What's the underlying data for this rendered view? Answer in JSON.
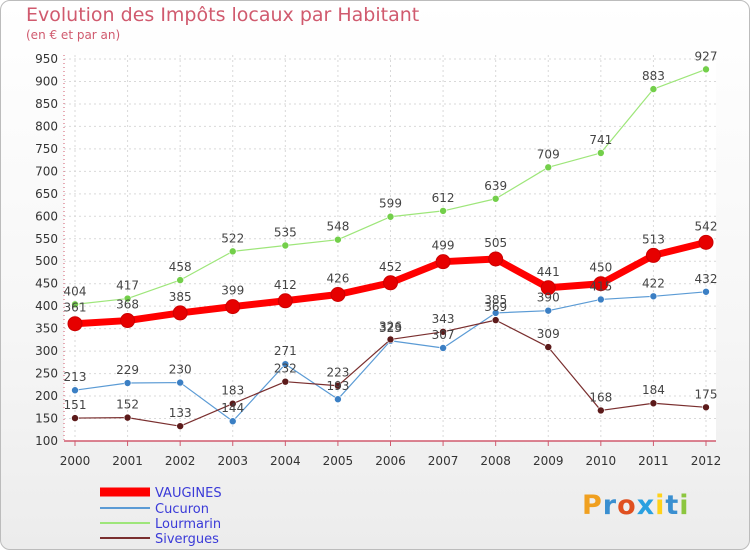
{
  "title": "Evolution des Impôts locaux par Habitant",
  "subtitle": "(en € et par an)",
  "brand": "Proxiti",
  "colors": {
    "title": "#d05a6e",
    "axis": "#d05a6e",
    "grid": "#d9d9d9"
  },
  "chart_data": {
    "type": "line",
    "x": [
      "2000",
      "2001",
      "2002",
      "2003",
      "2004",
      "2005",
      "2006",
      "2007",
      "2008",
      "2009",
      "2010",
      "2011",
      "2012"
    ],
    "ylim": [
      100,
      950
    ],
    "yticks": [
      100,
      150,
      200,
      250,
      300,
      350,
      400,
      450,
      500,
      550,
      600,
      650,
      700,
      750,
      800,
      850,
      900,
      950
    ],
    "grid": true,
    "legend_position": "bottom-left",
    "series": [
      {
        "name": "VAUGINES",
        "color": "#ff0000",
        "marker": "#e60000",
        "width": 7,
        "radius": 7,
        "values": [
          361,
          368,
          385,
          399,
          412,
          426,
          452,
          499,
          505,
          441,
          450,
          513,
          542
        ]
      },
      {
        "name": "Cucuron",
        "color": "#5b9bd5",
        "marker": "#3b7fc4",
        "width": 1.2,
        "radius": 3.5,
        "values": [
          213,
          229,
          230,
          144,
          271,
          193,
          323,
          307,
          385,
          390,
          415,
          422,
          432
        ]
      },
      {
        "name": "Lourmarin",
        "color": "#9ee67a",
        "marker": "#73cf4a",
        "width": 1.2,
        "radius": 3.5,
        "values": [
          404,
          417,
          458,
          522,
          535,
          548,
          599,
          612,
          639,
          709,
          741,
          883,
          927
        ]
      },
      {
        "name": "Sivergues",
        "color": "#7a2f2f",
        "marker": "#5c1a1a",
        "width": 1.2,
        "radius": 3.5,
        "values": [
          151,
          152,
          133,
          183,
          232,
          223,
          326,
          343,
          369,
          309,
          168,
          184,
          175
        ]
      }
    ]
  }
}
